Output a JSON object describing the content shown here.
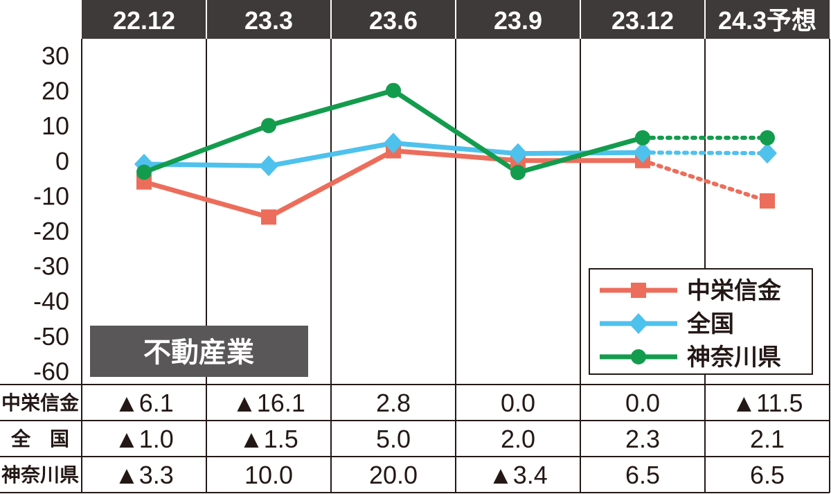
{
  "chart_data": {
    "type": "line",
    "categories": [
      "22.12",
      "23.3",
      "23.6",
      "23.9",
      "23.12",
      "24.3予想"
    ],
    "ylim": [
      -60,
      30
    ],
    "yticks": [
      "30",
      "20",
      "10",
      "0",
      "-10",
      "-20",
      "-30",
      "-40",
      "-50",
      "-60"
    ],
    "grid": "vertical",
    "legend_position": "bottom-right",
    "forecast_from_index": 4,
    "badge": "不動産業",
    "series": [
      {
        "name": "中栄信金",
        "values": [
          -6.1,
          -16.1,
          2.8,
          0.0,
          0.0,
          -11.5
        ],
        "color": "#ec6d5b",
        "marker": "square"
      },
      {
        "name": "全国",
        "values": [
          -1.0,
          -1.5,
          5.0,
          2.0,
          2.3,
          2.1
        ],
        "color": "#4fc1ed",
        "marker": "diamond"
      },
      {
        "name": "神奈川県",
        "values": [
          -3.3,
          10.0,
          20.0,
          -3.4,
          6.5,
          6.5
        ],
        "color": "#139c4d",
        "marker": "circle"
      }
    ],
    "table": {
      "row_labels": [
        "中栄信金",
        "全　国",
        "神奈川県"
      ],
      "rows": [
        [
          "▲6.1",
          "▲16.1",
          "2.8",
          "0.0",
          "0.0",
          "▲11.5"
        ],
        [
          "▲1.0",
          "▲1.5",
          "5.0",
          "2.0",
          "2.3",
          "2.1"
        ],
        [
          "▲3.3",
          "10.0",
          "20.0",
          "▲3.4",
          "6.5",
          "6.5"
        ]
      ]
    }
  }
}
